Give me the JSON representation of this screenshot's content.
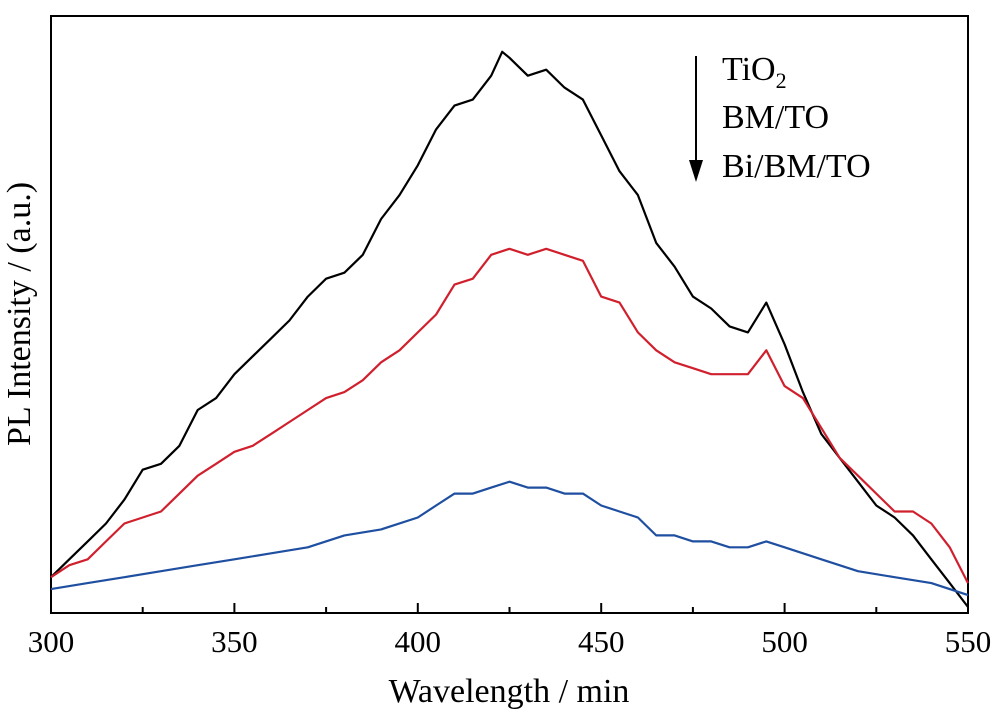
{
  "chart_data": {
    "type": "line",
    "title": "",
    "xlabel": "Wavelength / min",
    "ylabel": "PL Intensity / (a.u.)",
    "xlim": [
      300,
      550
    ],
    "ylim": [
      0,
      1.0
    ],
    "x_ticks": [
      300,
      350,
      400,
      450,
      500,
      550
    ],
    "x_tick_labels": [
      "300",
      "350",
      "400",
      "450",
      "500",
      "550"
    ],
    "y_ticks_shown": false,
    "grid": false,
    "legend": {
      "placement": "top-right",
      "arrow": "down",
      "entries": [
        {
          "base": "TiO",
          "sub": "2"
        },
        {
          "base": "BM/TO",
          "sub": ""
        },
        {
          "base": "Bi/BM/TO",
          "sub": ""
        }
      ]
    },
    "series": [
      {
        "color": "#000000",
        "x": [
          300,
          305,
          310,
          315,
          320,
          325,
          330,
          335,
          340,
          345,
          350,
          355,
          360,
          365,
          370,
          375,
          380,
          385,
          390,
          395,
          400,
          405,
          410,
          415,
          420,
          423,
          425,
          430,
          435,
          440,
          445,
          450,
          455,
          460,
          465,
          470,
          475,
          480,
          485,
          490,
          495,
          500,
          505,
          510,
          515,
          520,
          525,
          530,
          535,
          540,
          545,
          550
        ],
        "y": [
          0.06,
          0.09,
          0.12,
          0.15,
          0.19,
          0.24,
          0.25,
          0.28,
          0.34,
          0.36,
          0.4,
          0.43,
          0.46,
          0.49,
          0.53,
          0.56,
          0.57,
          0.6,
          0.66,
          0.7,
          0.75,
          0.81,
          0.85,
          0.86,
          0.9,
          0.94,
          0.93,
          0.9,
          0.91,
          0.88,
          0.86,
          0.8,
          0.74,
          0.7,
          0.62,
          0.58,
          0.53,
          0.51,
          0.48,
          0.47,
          0.52,
          0.45,
          0.37,
          0.3,
          0.26,
          0.22,
          0.18,
          0.16,
          0.13,
          0.09,
          0.05,
          0.01
        ]
      },
      {
        "color": "#d0202e",
        "x": [
          300,
          305,
          310,
          315,
          320,
          325,
          330,
          335,
          340,
          345,
          350,
          355,
          360,
          365,
          370,
          375,
          380,
          385,
          390,
          395,
          400,
          405,
          410,
          415,
          420,
          425,
          430,
          435,
          440,
          445,
          450,
          455,
          460,
          465,
          470,
          475,
          480,
          485,
          490,
          495,
          500,
          505,
          510,
          515,
          520,
          525,
          530,
          535,
          540,
          545,
          550
        ],
        "y": [
          0.06,
          0.08,
          0.09,
          0.12,
          0.15,
          0.16,
          0.17,
          0.2,
          0.23,
          0.25,
          0.27,
          0.28,
          0.3,
          0.32,
          0.34,
          0.36,
          0.37,
          0.39,
          0.42,
          0.44,
          0.47,
          0.5,
          0.55,
          0.56,
          0.6,
          0.61,
          0.6,
          0.61,
          0.6,
          0.59,
          0.53,
          0.52,
          0.47,
          0.44,
          0.42,
          0.41,
          0.4,
          0.4,
          0.4,
          0.44,
          0.38,
          0.36,
          0.31,
          0.26,
          0.23,
          0.2,
          0.17,
          0.17,
          0.15,
          0.11,
          0.05
        ]
      },
      {
        "color": "#1f4fa0",
        "x": [
          300,
          310,
          320,
          330,
          340,
          350,
          360,
          370,
          380,
          390,
          400,
          405,
          410,
          415,
          420,
          425,
          430,
          435,
          440,
          445,
          450,
          455,
          460,
          465,
          470,
          475,
          480,
          485,
          490,
          495,
          500,
          510,
          520,
          530,
          540,
          550
        ],
        "y": [
          0.04,
          0.05,
          0.06,
          0.07,
          0.08,
          0.09,
          0.1,
          0.11,
          0.13,
          0.14,
          0.16,
          0.18,
          0.2,
          0.2,
          0.21,
          0.22,
          0.21,
          0.21,
          0.2,
          0.2,
          0.18,
          0.17,
          0.16,
          0.13,
          0.13,
          0.12,
          0.12,
          0.11,
          0.11,
          0.12,
          0.11,
          0.09,
          0.07,
          0.06,
          0.05,
          0.03
        ]
      }
    ]
  }
}
